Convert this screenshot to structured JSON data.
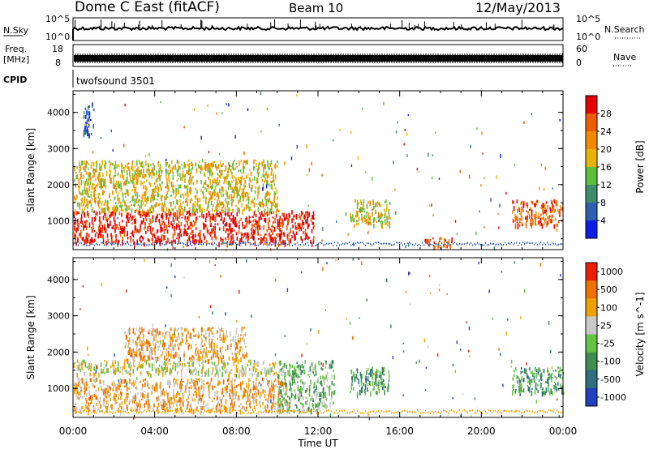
{
  "header": {
    "station": "Dome C East (fitACF)",
    "beam": "Beam 10",
    "date": "12/May/2013"
  },
  "strip_labels": {
    "nsky": "N.Sky",
    "nsky_ticks": [
      "10^5",
      "10^0"
    ],
    "nsearch": "N.Search",
    "nsearch_ticks": [
      "10^5",
      "10^0"
    ],
    "freq_line1": "Freq.",
    "freq_line2": "[MHz]",
    "freq_ticks": [
      "18",
      "8"
    ],
    "nave": "Nave",
    "nave_ticks": [
      "60",
      "0"
    ],
    "cpid": "CPID",
    "cpid_value": "twofsound 3501"
  },
  "chart_data": [
    {
      "type": "heatmap",
      "panel": "power",
      "ylabel": "Slant Range [km]",
      "yticks": [
        1000,
        2000,
        3000,
        4000
      ],
      "ylim": [
        200,
        4600
      ],
      "xlim": [
        0,
        24
      ],
      "colorbar_label": "Power [dB]",
      "colorbar_ticks": [
        "4",
        "8",
        "12",
        "16",
        "20",
        "24",
        "28"
      ],
      "colorbar_colors": [
        "#0a1ee6",
        "#2f5fb0",
        "#3d8c6a",
        "#5cbf3a",
        "#e8b400",
        "#f28a00",
        "#f05a00",
        "#e60000"
      ],
      "regions": [
        {
          "t": [
            0.0,
            11.8
          ],
          "r": [
            400,
            1300
          ],
          "level": 7
        },
        {
          "t": [
            0.0,
            10.0
          ],
          "r": [
            1300,
            2700
          ],
          "level": 4
        },
        {
          "t": [
            0.5,
            1.0
          ],
          "r": [
            3400,
            4300
          ],
          "level": 1
        },
        {
          "t": [
            13.5,
            15.5
          ],
          "r": [
            900,
            1600
          ],
          "level": 4
        },
        {
          "t": [
            17.2,
            18.6
          ],
          "r": [
            250,
            550
          ],
          "level": 6
        },
        {
          "t": [
            21.5,
            24.0
          ],
          "r": [
            900,
            1600
          ],
          "level": 6
        }
      ]
    },
    {
      "type": "heatmap",
      "panel": "velocity",
      "xlabel": "Time UT",
      "xticks": [
        "00:00",
        "04:00",
        "08:00",
        "12:00",
        "16:00",
        "20:00",
        "00:00"
      ],
      "ylabel": "Slant Range [km]",
      "yticks": [
        1000,
        2000,
        3000,
        4000
      ],
      "ylim": [
        200,
        4600
      ],
      "xlim": [
        0,
        24
      ],
      "colorbar_label": "Velocity [m s^-1]",
      "colorbar_ticks": [
        "1000",
        "500",
        "100",
        "25",
        "-25",
        "-100",
        "-500",
        "-1000"
      ],
      "colorbar_colors": [
        "#2040c0",
        "#2f6f7f",
        "#3e8f50",
        "#66c244",
        "#c8c8c8",
        "#f0a000",
        "#f07000",
        "#e82000"
      ],
      "regions": [
        {
          "t": [
            0.0,
            10.5
          ],
          "r": [
            400,
            1300
          ],
          "level": 5
        },
        {
          "t": [
            0.0,
            10.0
          ],
          "r": [
            1400,
            1800
          ],
          "level": 4
        },
        {
          "t": [
            2.5,
            8.5
          ],
          "r": [
            1800,
            2700
          ],
          "level": 5
        },
        {
          "t": [
            10.0,
            12.8
          ],
          "r": [
            400,
            1800
          ],
          "level": 3
        },
        {
          "t": [
            13.5,
            15.5
          ],
          "r": [
            900,
            1600
          ],
          "level": 2
        },
        {
          "t": [
            21.5,
            24.0
          ],
          "r": [
            900,
            1600
          ],
          "level": 2
        }
      ]
    }
  ]
}
